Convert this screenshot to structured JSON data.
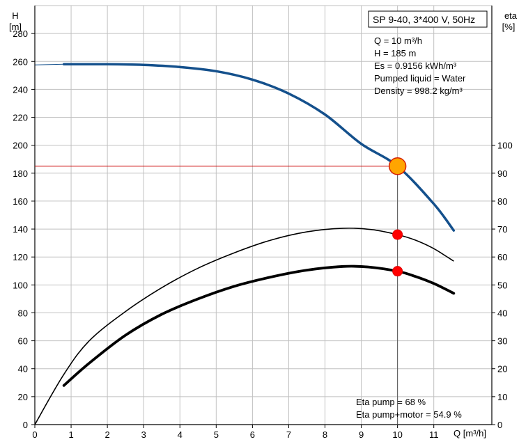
{
  "chart_data": {
    "type": "line",
    "title": "SP 9-40, 3*400 V, 50Hz",
    "info_lines": [
      "Q = 10 m³/h",
      "H = 185 m",
      "Es = 0.9156 kWh/m³",
      "Pumped liquid = Water",
      "Density = 998.2 kg/m³"
    ],
    "eta_lines": [
      "Eta pump = 68 %",
      "Eta pump+motor = 54.9 %"
    ],
    "x_axis": {
      "label": "Q [m³/h]",
      "min": 0,
      "max": 12.6,
      "ticks": [
        0,
        1,
        2,
        3,
        4,
        5,
        6,
        7,
        8,
        9,
        10,
        11
      ],
      "grid": true
    },
    "y_axis_left": {
      "label_line1": "H",
      "label_line2": "[m]",
      "min": 0,
      "max": 300,
      "ticks": [
        0,
        20,
        40,
        60,
        80,
        100,
        120,
        140,
        160,
        180,
        200,
        220,
        240,
        260,
        280
      ],
      "grid": true
    },
    "y_axis_right": {
      "label_line1": "eta",
      "label_line2": "[%]",
      "min": 0,
      "max": 150,
      "ticks": [
        0,
        10,
        20,
        30,
        40,
        50,
        60,
        70,
        80,
        90,
        100
      ]
    },
    "operating_point": {
      "q": 10,
      "h": 185,
      "eta_pump": 68,
      "eta_pump_motor": 54.9
    },
    "series": [
      {
        "axis": "left",
        "color": "#14508c",
        "dashed_start": true,
        "points": [
          [
            0,
            257.5
          ],
          [
            0.8,
            258
          ],
          [
            2,
            258
          ],
          [
            3,
            257.5
          ],
          [
            4,
            256
          ],
          [
            5,
            253
          ],
          [
            6,
            247
          ],
          [
            7,
            237
          ],
          [
            8,
            222
          ],
          [
            9,
            201
          ],
          [
            10,
            185
          ],
          [
            11,
            158
          ],
          [
            11.55,
            139
          ]
        ]
      },
      {
        "axis": "right",
        "color": "#000000",
        "points": [
          [
            0,
            0
          ],
          [
            0.8,
            18
          ],
          [
            1.5,
            30
          ],
          [
            2.5,
            40.5
          ],
          [
            3.5,
            49
          ],
          [
            4.5,
            56
          ],
          [
            5.5,
            61.5
          ],
          [
            6.5,
            66
          ],
          [
            7.5,
            69
          ],
          [
            8.5,
            70.3
          ],
          [
            9.3,
            69.8
          ],
          [
            10,
            68
          ],
          [
            10.5,
            66
          ],
          [
            11,
            63
          ],
          [
            11.55,
            58.5
          ]
        ]
      },
      {
        "axis": "right",
        "color": "#000000",
        "bold": true,
        "points": [
          [
            0.8,
            14
          ],
          [
            1.5,
            22
          ],
          [
            2.5,
            32
          ],
          [
            3.5,
            39.5
          ],
          [
            4.5,
            45
          ],
          [
            5.5,
            49.5
          ],
          [
            6.5,
            52.8
          ],
          [
            7.5,
            55.3
          ],
          [
            8.5,
            56.6
          ],
          [
            9.2,
            56.4
          ],
          [
            10,
            54.9
          ],
          [
            10.5,
            53
          ],
          [
            11,
            50.5
          ],
          [
            11.55,
            47
          ]
        ]
      }
    ],
    "colors": {
      "grid": "#c0c0c0",
      "marker": "#ff0000",
      "operating_point": "#ffa500",
      "h_line": "#cc0000"
    }
  }
}
